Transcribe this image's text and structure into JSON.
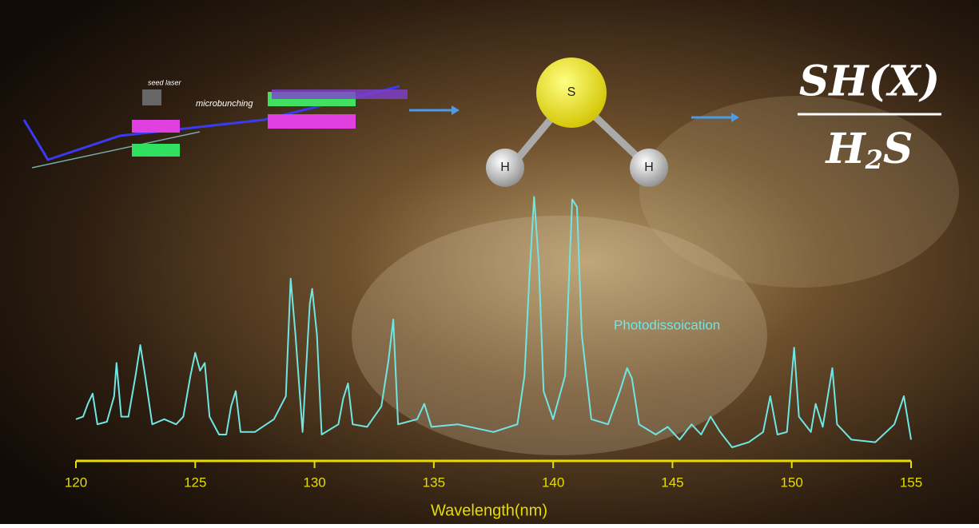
{
  "chart_data": {
    "type": "line",
    "x_label": "Wavelength(nm)",
    "annotation": "Photodissoication",
    "x": [
      120,
      120.3,
      120.5,
      120.7,
      120.9,
      121.3,
      121.6,
      121.7,
      121.9,
      122.2,
      122.5,
      122.7,
      122.9,
      123.2,
      123.7,
      124.2,
      124.5,
      124.8,
      125.0,
      125.2,
      125.4,
      125.6,
      126.0,
      126.3,
      126.5,
      126.7,
      126.9,
      127.5,
      128.3,
      128.8,
      129.0,
      129.2,
      129.5,
      129.8,
      129.9,
      130.1,
      130.3,
      131.0,
      131.2,
      131.4,
      131.6,
      132.2,
      132.8,
      133.1,
      133.3,
      133.5,
      134.3,
      134.6,
      134.9,
      136.0,
      137.5,
      138.5,
      138.8,
      139.0,
      139.2,
      139.4,
      139.6,
      140.0,
      140.5,
      140.8,
      141.0,
      141.2,
      141.6,
      142.3,
      142.8,
      143.1,
      143.3,
      143.6,
      144.3,
      144.8,
      145.3,
      145.8,
      146.2,
      146.6,
      147.0,
      147.5,
      148.2,
      148.8,
      149.1,
      149.4,
      149.8,
      150.1,
      150.3,
      150.8,
      151.0,
      151.3,
      151.7,
      151.9,
      152.5,
      153.5,
      154.3,
      154.7,
      155.0
    ],
    "values": [
      11,
      12,
      17,
      21,
      9,
      10,
      20,
      33,
      12,
      12,
      28,
      40,
      28,
      9,
      11,
      9,
      12,
      28,
      37,
      30,
      33,
      12,
      5,
      5,
      16,
      22,
      6,
      6,
      11,
      20,
      66,
      44,
      6,
      56,
      62,
      44,
      5,
      9,
      19,
      25,
      9,
      8,
      16,
      34,
      50,
      9,
      11,
      17,
      8,
      9,
      6,
      9,
      28,
      66,
      98,
      72,
      22,
      11,
      28,
      97,
      94,
      44,
      11,
      9,
      22,
      31,
      27,
      9,
      5,
      8,
      3,
      9,
      5,
      12,
      6,
      0,
      2,
      6,
      20,
      5,
      6,
      39,
      12,
      6,
      17,
      8,
      31,
      9,
      3,
      2,
      9,
      20,
      3
    ],
    "color": "#6fe6e3",
    "axis_color": "#e6dc00",
    "xlim": [
      120,
      155
    ],
    "xticks": [
      120,
      125,
      130,
      135,
      140,
      145,
      150,
      155
    ],
    "ylim": [
      0,
      100
    ]
  },
  "diagram": {
    "atom_center": "S",
    "atom_left": "H",
    "atom_right": "H",
    "ratio_numerator": "SH(X)",
    "ratio_denominator": [
      "H",
      "2",
      "S"
    ],
    "accelerator_label": "microbunching",
    "laser_label": "seed laser"
  }
}
